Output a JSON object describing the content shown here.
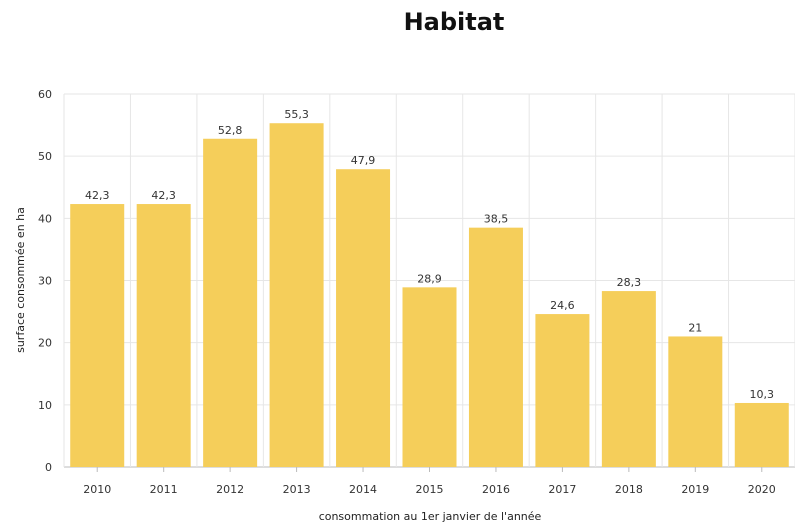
{
  "chart_data": {
    "type": "bar",
    "title": "Habitat",
    "xlabel": "consommation au 1er janvier de l'année",
    "ylabel": "surface consommée en ha",
    "categories": [
      "2010",
      "2011",
      "2012",
      "2013",
      "2014",
      "2015",
      "2016",
      "2017",
      "2018",
      "2019",
      "2020"
    ],
    "values": [
      42.3,
      42.3,
      52.8,
      55.3,
      47.9,
      28.9,
      38.5,
      24.6,
      28.3,
      21,
      10.3
    ],
    "value_labels": [
      "42,3",
      "42,3",
      "52,8",
      "55,3",
      "47,9",
      "28,9",
      "38,5",
      "24,6",
      "28,3",
      "21",
      "10,3"
    ],
    "ylim": [
      0,
      60
    ],
    "yticks": [
      0,
      10,
      20,
      30,
      40,
      50,
      60
    ],
    "grid": true,
    "bar_color": "#F5CE5A",
    "grid_color": "#E6E6E6"
  }
}
